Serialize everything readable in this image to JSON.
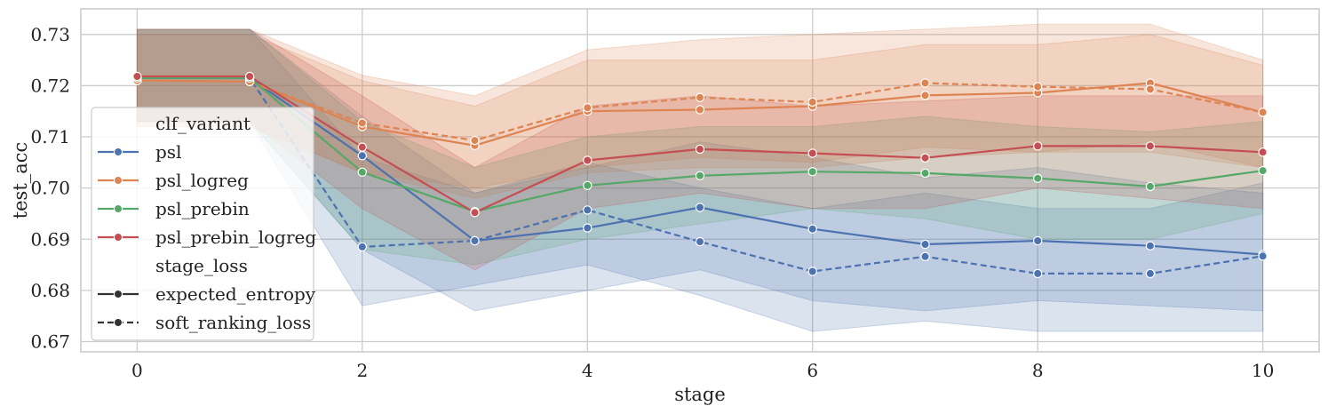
{
  "chart_data": {
    "type": "line",
    "title": "",
    "xlabel": "stage",
    "ylabel": "test_acc",
    "xlim": [
      -0.5,
      10.5
    ],
    "ylim": [
      0.668,
      0.735
    ],
    "xticks": [
      0,
      2,
      4,
      6,
      8,
      10
    ],
    "yticks": [
      0.67,
      0.68,
      0.69,
      0.7,
      0.71,
      0.72,
      0.73
    ],
    "ytick_labels": [
      "0.67",
      "0.68",
      "0.69",
      "0.70",
      "0.71",
      "0.72",
      "0.73"
    ],
    "grid": true,
    "legend_placement": "center-left",
    "x": [
      0,
      1,
      2,
      3,
      4,
      5,
      6,
      7,
      8,
      9,
      10
    ],
    "legend": {
      "hue_title": "clf_variant",
      "style_title": "stage_loss",
      "hue_labels": [
        "psl",
        "psl_logreg",
        "psl_prebin",
        "psl_prebin_logreg"
      ],
      "style_labels": [
        "expected_entropy",
        "soft_ranking_loss"
      ]
    },
    "colors": {
      "psl": "#4c72b0",
      "psl_logreg": "#dd8452",
      "psl_prebin": "#55a868",
      "psl_prebin_logreg": "#c44e52"
    },
    "series": [
      {
        "hue": "psl",
        "style": "expected_entropy",
        "values": [
          0.7215,
          0.7215,
          0.7063,
          0.6897,
          0.6922,
          0.6962,
          0.692,
          0.689,
          0.6897,
          0.6887,
          0.687
        ],
        "ci_low": [
          0.713,
          0.713,
          0.688,
          0.676,
          0.68,
          0.684,
          0.678,
          0.676,
          0.678,
          0.677,
          0.676
        ],
        "ci_high": [
          0.731,
          0.731,
          0.714,
          0.699,
          0.704,
          0.709,
          0.706,
          0.702,
          0.704,
          0.701,
          0.699
        ]
      },
      {
        "hue": "psl",
        "style": "soft_ranking_loss",
        "values": [
          0.7215,
          0.7215,
          0.6885,
          0.6897,
          0.6957,
          0.6895,
          0.6837,
          0.6866,
          0.6833,
          0.6833,
          0.6867
        ],
        "ci_low": [
          0.713,
          0.713,
          0.677,
          0.681,
          0.685,
          0.679,
          0.672,
          0.674,
          0.672,
          0.672,
          0.672
        ],
        "ci_high": [
          0.731,
          0.731,
          0.706,
          0.699,
          0.705,
          0.7,
          0.696,
          0.699,
          0.696,
          0.696,
          0.701
        ]
      },
      {
        "hue": "psl_logreg",
        "style": "expected_entropy",
        "values": [
          0.721,
          0.7208,
          0.712,
          0.7083,
          0.715,
          0.7153,
          0.716,
          0.7181,
          0.7186,
          0.7205,
          0.7148
        ],
        "ci_low": [
          0.712,
          0.712,
          0.703,
          0.698,
          0.703,
          0.704,
          0.704,
          0.706,
          0.707,
          0.709,
          0.704
        ],
        "ci_high": [
          0.73,
          0.73,
          0.721,
          0.716,
          0.725,
          0.725,
          0.725,
          0.728,
          0.728,
          0.73,
          0.724
        ]
      },
      {
        "hue": "psl_logreg",
        "style": "soft_ranking_loss",
        "values": [
          0.721,
          0.7208,
          0.7127,
          0.7093,
          0.7157,
          0.7177,
          0.7168,
          0.7205,
          0.7198,
          0.7193,
          0.7148
        ],
        "ci_low": [
          0.712,
          0.712,
          0.703,
          0.7,
          0.704,
          0.706,
          0.705,
          0.708,
          0.707,
          0.707,
          0.704
        ],
        "ci_high": [
          0.731,
          0.731,
          0.722,
          0.718,
          0.727,
          0.729,
          0.73,
          0.731,
          0.732,
          0.732,
          0.725
        ]
      },
      {
        "hue": "psl_prebin",
        "style": "expected_entropy",
        "values": [
          0.7215,
          0.7215,
          0.7031,
          0.6954,
          0.7005,
          0.7024,
          0.7032,
          0.7029,
          0.7019,
          0.7003,
          0.7034
        ],
        "ci_low": [
          0.713,
          0.713,
          0.688,
          0.685,
          0.69,
          0.693,
          0.696,
          0.694,
          0.69,
          0.69,
          0.695
        ],
        "ci_high": [
          0.731,
          0.731,
          0.713,
          0.704,
          0.71,
          0.712,
          0.712,
          0.714,
          0.712,
          0.711,
          0.713
        ]
      },
      {
        "hue": "psl_prebin_logreg",
        "style": "expected_entropy",
        "values": [
          0.7218,
          0.7218,
          0.708,
          0.6952,
          0.7054,
          0.7076,
          0.7068,
          0.7059,
          0.7082,
          0.7082,
          0.707
        ],
        "ci_low": [
          0.713,
          0.713,
          0.696,
          0.684,
          0.696,
          0.699,
          0.696,
          0.696,
          0.7,
          0.698,
          0.696
        ],
        "ci_high": [
          0.731,
          0.731,
          0.718,
          0.704,
          0.716,
          0.718,
          0.716,
          0.717,
          0.718,
          0.718,
          0.718
        ]
      }
    ]
  }
}
